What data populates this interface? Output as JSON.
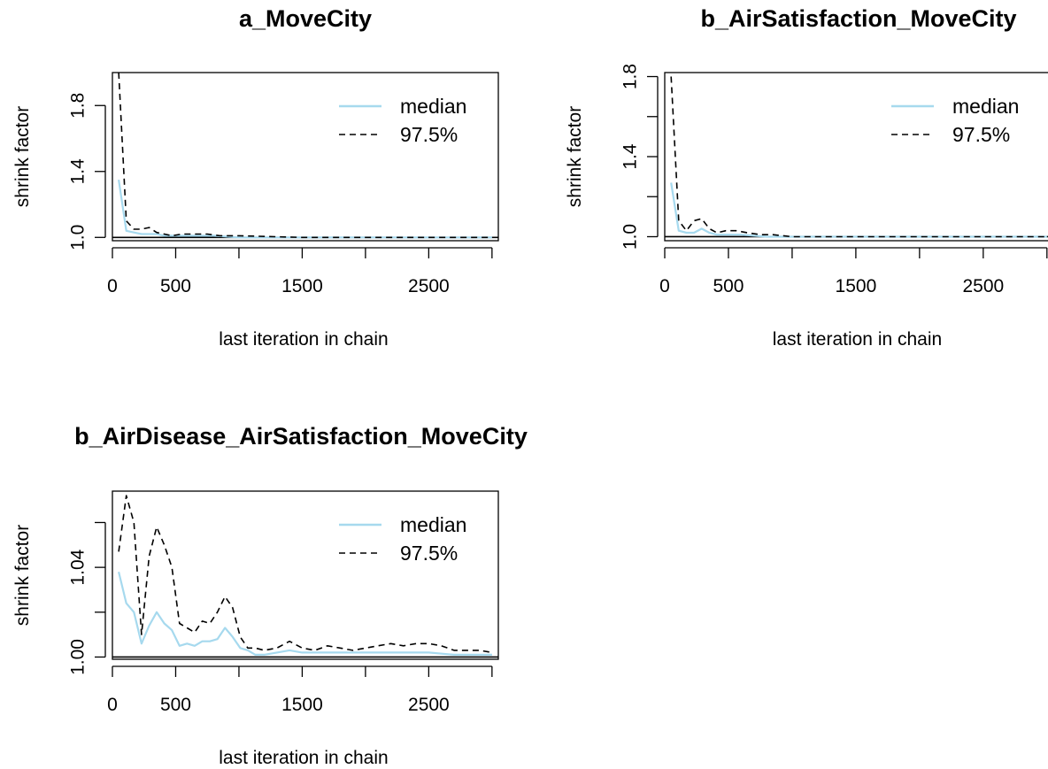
{
  "chart_data": [
    {
      "type": "line",
      "title": "a_MoveCity",
      "xlabel": "last iteration in chain",
      "ylabel": "shrink factor",
      "xlim": [
        0,
        3050
      ],
      "ylim": [
        0.98,
        2.0
      ],
      "xticks": [
        0,
        500,
        1000,
        1500,
        2000,
        2500,
        3000
      ],
      "xtick_labels": [
        "0",
        "500",
        "",
        "1500",
        "",
        "2500",
        ""
      ],
      "yticks": [
        1.0,
        1.4,
        1.8
      ],
      "ytick_labels": [
        "1.0",
        "1.4",
        "1.8"
      ],
      "hline": 1.0,
      "legend": {
        "position": "top-right",
        "entries": [
          "median",
          "97.5%"
        ]
      },
      "series": [
        {
          "name": "median",
          "color": "#a6d9ee",
          "dash": "solid",
          "x": [
            50,
            110,
            170,
            230,
            290,
            350,
            410,
            470,
            600,
            800,
            1000,
            1500,
            2000,
            2500,
            3000
          ],
          "y": [
            1.35,
            1.04,
            1.03,
            1.02,
            1.02,
            1.02,
            1.01,
            1.01,
            1.01,
            1.01,
            1.0,
            1.0,
            1.0,
            1.0,
            1.0
          ]
        },
        {
          "name": "97.5%",
          "color": "#000000",
          "dash": "dashed",
          "x": [
            50,
            110,
            170,
            230,
            290,
            350,
            410,
            470,
            550,
            650,
            750,
            850,
            1000,
            1500,
            2000,
            2500,
            3000
          ],
          "y": [
            2.0,
            1.1,
            1.05,
            1.05,
            1.06,
            1.03,
            1.02,
            1.01,
            1.02,
            1.02,
            1.02,
            1.01,
            1.01,
            1.0,
            1.0,
            1.0,
            1.0
          ]
        }
      ]
    },
    {
      "type": "line",
      "title": "b_AirSatisfaction_MoveCity",
      "xlabel": "last iteration in chain",
      "ylabel": "shrink factor",
      "xlim": [
        0,
        3050
      ],
      "ylim": [
        0.98,
        1.82
      ],
      "xticks": [
        0,
        500,
        1000,
        1500,
        2000,
        2500,
        3000
      ],
      "xtick_labels": [
        "0",
        "500",
        "",
        "1500",
        "",
        "2500",
        ""
      ],
      "yticks": [
        1.0,
        1.2,
        1.4,
        1.6,
        1.8
      ],
      "ytick_labels": [
        "1.0",
        "",
        "1.4",
        "",
        "1.8"
      ],
      "hline": 1.0,
      "legend": {
        "position": "top-right",
        "entries": [
          "median",
          "97.5%"
        ]
      },
      "series": [
        {
          "name": "median",
          "color": "#a6d9ee",
          "dash": "solid",
          "x": [
            50,
            110,
            170,
            230,
            290,
            350,
            410,
            500,
            600,
            800,
            1000,
            1500,
            2000,
            2500,
            3000
          ],
          "y": [
            1.27,
            1.03,
            1.02,
            1.02,
            1.04,
            1.02,
            1.01,
            1.01,
            1.01,
            1.0,
            1.0,
            1.0,
            1.0,
            1.0,
            1.0
          ]
        },
        {
          "name": "97.5%",
          "color": "#000000",
          "dash": "dashed",
          "x": [
            50,
            110,
            170,
            230,
            290,
            350,
            410,
            480,
            560,
            650,
            750,
            850,
            1000,
            1500,
            2000,
            2500,
            3000
          ],
          "y": [
            1.8,
            1.08,
            1.03,
            1.08,
            1.09,
            1.04,
            1.02,
            1.03,
            1.03,
            1.02,
            1.01,
            1.01,
            1.0,
            1.0,
            1.0,
            1.0,
            1.0
          ]
        }
      ]
    },
    {
      "type": "line",
      "title": "b_AirDisease_AirSatisfaction_MoveCity",
      "xlabel": "last iteration in chain",
      "ylabel": "shrink factor",
      "xlim": [
        0,
        3050
      ],
      "ylim": [
        0.999,
        1.074
      ],
      "xticks": [
        0,
        500,
        1000,
        1500,
        2000,
        2500,
        3000
      ],
      "xtick_labels": [
        "0",
        "500",
        "",
        "1500",
        "",
        "2500",
        ""
      ],
      "yticks": [
        1.0,
        1.02,
        1.04,
        1.06
      ],
      "ytick_labels": [
        "1.00",
        "",
        "1.04",
        ""
      ],
      "hline": 1.0,
      "legend": {
        "position": "top-right",
        "entries": [
          "median",
          "97.5%"
        ]
      },
      "series": [
        {
          "name": "median",
          "color": "#a6d9ee",
          "dash": "solid",
          "x": [
            50,
            110,
            170,
            230,
            290,
            350,
            410,
            470,
            530,
            590,
            650,
            710,
            770,
            830,
            890,
            950,
            1010,
            1070,
            1130,
            1200,
            1300,
            1400,
            1500,
            1700,
            1900,
            2100,
            2300,
            2500,
            2700,
            3000
          ],
          "y": [
            1.038,
            1.024,
            1.02,
            1.006,
            1.014,
            1.02,
            1.015,
            1.012,
            1.005,
            1.006,
            1.005,
            1.007,
            1.007,
            1.008,
            1.013,
            1.009,
            1.004,
            1.003,
            1.001,
            1.001,
            1.002,
            1.003,
            1.002,
            1.002,
            1.002,
            1.002,
            1.002,
            1.002,
            1.001,
            1.001
          ]
        },
        {
          "name": "97.5%",
          "color": "#000000",
          "dash": "dashed",
          "x": [
            50,
            110,
            170,
            230,
            290,
            350,
            410,
            470,
            530,
            590,
            650,
            710,
            770,
            830,
            890,
            950,
            1010,
            1070,
            1130,
            1200,
            1300,
            1400,
            1500,
            1600,
            1700,
            1800,
            1900,
            2000,
            2100,
            2200,
            2300,
            2400,
            2500,
            2600,
            2700,
            2800,
            2900,
            3000
          ],
          "y": [
            1.047,
            1.072,
            1.06,
            1.01,
            1.045,
            1.058,
            1.05,
            1.04,
            1.015,
            1.013,
            1.011,
            1.016,
            1.015,
            1.02,
            1.027,
            1.022,
            1.009,
            1.004,
            1.004,
            1.003,
            1.004,
            1.007,
            1.004,
            1.003,
            1.005,
            1.004,
            1.003,
            1.004,
            1.005,
            1.006,
            1.005,
            1.006,
            1.006,
            1.005,
            1.003,
            1.003,
            1.003,
            1.002
          ]
        }
      ]
    }
  ]
}
